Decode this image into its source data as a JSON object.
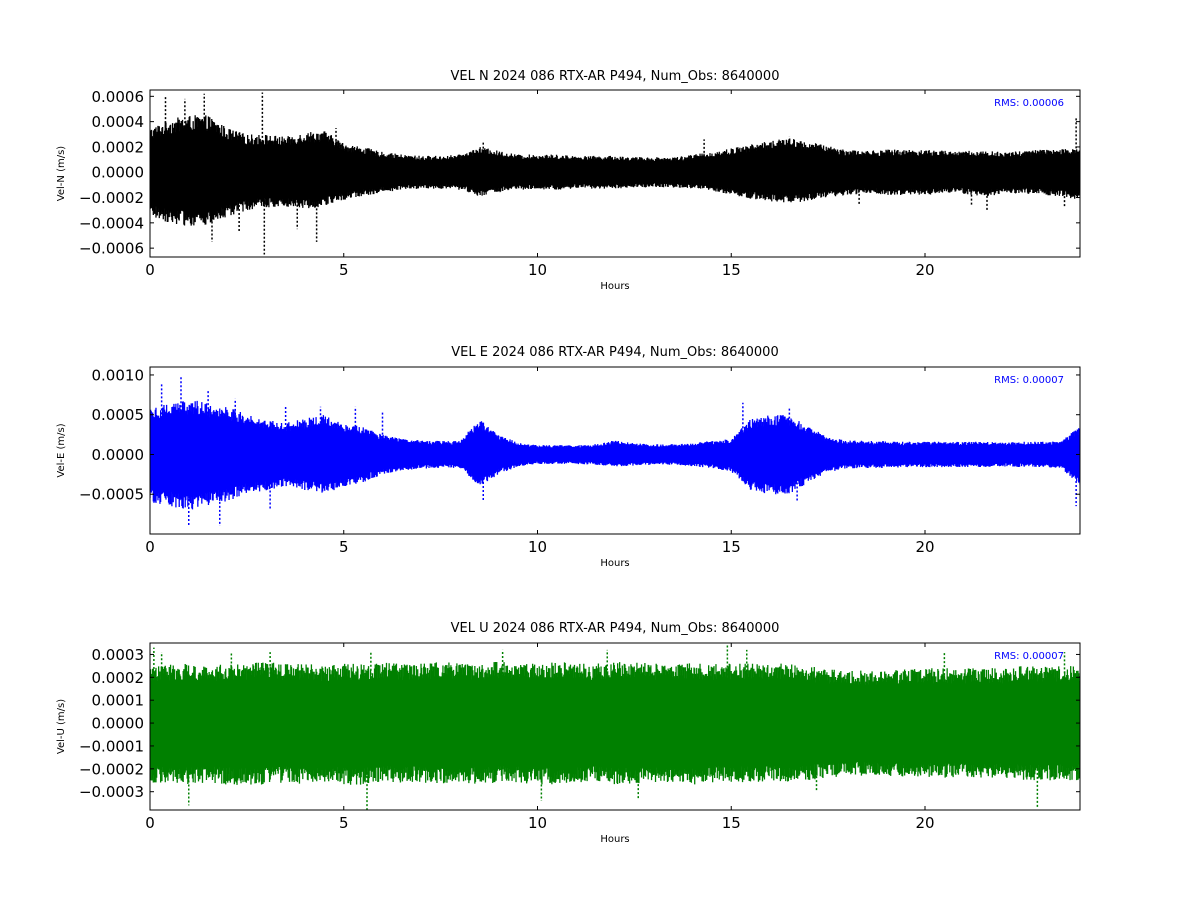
{
  "chart_data": [
    {
      "type": "scatter",
      "title": "VEL N 2024 086 RTX-AR  P494, Num_Obs: 8640000",
      "xlabel": "Hours",
      "ylabel": "Vel-N (m/s)",
      "xlim": [
        0,
        24
      ],
      "ylim": [
        -0.00067,
        0.00065
      ],
      "xticks": [
        0,
        5,
        10,
        15,
        20
      ],
      "xtick_labels": [
        "0",
        "5",
        "10",
        "15",
        "20"
      ],
      "yticks": [
        -0.0006,
        -0.0004,
        -0.0002,
        0.0,
        0.0002,
        0.0004,
        0.0006
      ],
      "ytick_labels": [
        "−0.0006",
        "−0.0004",
        "−0.0002",
        "0.0000",
        "0.0002",
        "0.0004",
        "0.0006"
      ],
      "annotation": "RMS:  0.00006",
      "annotation_color": "#0000ff",
      "color": "#000000",
      "num_obs": 8640000,
      "rms": 6e-05,
      "envelope": {
        "x": [
          0,
          0.5,
          1,
          1.5,
          2,
          2.5,
          3,
          3.5,
          4,
          4.5,
          5,
          5.5,
          6,
          6.5,
          7,
          7.5,
          8,
          8.5,
          9,
          9.5,
          10,
          10.5,
          11,
          11.5,
          12,
          12.5,
          13,
          13.5,
          14,
          14.5,
          15,
          15.5,
          16,
          16.5,
          17,
          17.5,
          18,
          18.5,
          19,
          19.5,
          20,
          20.5,
          21,
          21.5,
          22,
          22.5,
          23,
          23.5,
          24
        ],
        "y_upper": [
          0.00035,
          0.00042,
          0.00045,
          0.00045,
          0.00035,
          0.0003,
          0.0003,
          0.00028,
          0.00032,
          0.00033,
          0.00023,
          0.0002,
          0.00016,
          0.00014,
          0.00013,
          0.00013,
          0.00014,
          0.0002,
          0.00017,
          0.00014,
          0.00014,
          0.00014,
          0.00013,
          0.00013,
          0.00013,
          0.00012,
          0.00012,
          0.00012,
          0.00014,
          0.00016,
          0.00019,
          0.00022,
          0.00025,
          0.00027,
          0.00024,
          0.00021,
          0.00018,
          0.00017,
          0.00018,
          0.00018,
          0.00018,
          0.00017,
          0.00017,
          0.00017,
          0.00016,
          0.00017,
          0.00018,
          0.00018,
          0.0002
        ],
        "y_lower": [
          -0.00035,
          -0.0004,
          -0.00043,
          -0.00042,
          -0.00036,
          -0.0003,
          -0.00028,
          -0.00027,
          -0.00029,
          -0.00027,
          -0.00022,
          -0.00019,
          -0.00016,
          -0.00014,
          -0.00013,
          -0.00013,
          -0.00014,
          -0.00019,
          -0.00016,
          -0.00014,
          -0.00014,
          -0.00014,
          -0.00013,
          -0.00013,
          -0.00013,
          -0.00012,
          -0.00012,
          -0.00012,
          -0.00013,
          -0.00015,
          -0.00018,
          -0.00021,
          -0.00023,
          -0.00025,
          -0.00023,
          -0.0002,
          -0.00018,
          -0.00017,
          -0.00018,
          -0.00018,
          -0.00018,
          -0.00017,
          -0.00017,
          -0.0002,
          -0.00017,
          -0.00017,
          -0.00018,
          -0.00019,
          -0.00022
        ]
      },
      "spikes": {
        "x": [
          0.4,
          0.9,
          1.4,
          1.6,
          2.3,
          2.9,
          2.95,
          3.8,
          4.3,
          4.8,
          8.6,
          14.3,
          16.5,
          18.3,
          21.2,
          21.6,
          23.6,
          23.9
        ],
        "y": [
          0.0006,
          0.00058,
          0.00062,
          -0.00055,
          -0.00048,
          0.00063,
          -0.00065,
          -0.00045,
          -0.00055,
          0.00035,
          0.00024,
          0.00026,
          0.00028,
          -0.00025,
          -0.00026,
          -0.00031,
          -0.00027,
          0.00043
        ]
      }
    },
    {
      "type": "scatter",
      "title": "VEL E 2024 086 RTX-AR  P494, Num_Obs: 8640000",
      "xlabel": "Hours",
      "ylabel": "Vel-E (m/s)",
      "xlim": [
        0,
        24
      ],
      "ylim": [
        -0.001,
        0.0011
      ],
      "xticks": [
        0,
        5,
        10,
        15,
        20
      ],
      "xtick_labels": [
        "0",
        "5",
        "10",
        "15",
        "20"
      ],
      "yticks": [
        -0.0005,
        0.0,
        0.0005,
        0.001
      ],
      "ytick_labels": [
        "−0.0005",
        "0.0000",
        "0.0005",
        "0.0010"
      ],
      "annotation": "RMS:  0.00007",
      "annotation_color": "#0000ff",
      "color": "#0000ff",
      "num_obs": 8640000,
      "rms": 7e-05,
      "envelope": {
        "x": [
          0,
          0.5,
          1,
          1.5,
          2,
          2.5,
          3,
          3.5,
          4,
          4.5,
          5,
          5.5,
          6,
          6.5,
          7,
          7.5,
          8,
          8.5,
          9,
          9.5,
          10,
          10.5,
          11,
          11.5,
          12,
          12.5,
          13,
          13.5,
          14,
          14.5,
          15,
          15.5,
          16,
          16.5,
          17,
          17.5,
          18,
          18.5,
          19,
          19.5,
          20,
          20.5,
          21,
          21.5,
          22,
          22.5,
          23,
          23.5,
          24
        ],
        "y_upper": [
          0.0006,
          0.00065,
          0.0007,
          0.00065,
          0.0006,
          0.0005,
          0.00045,
          0.0004,
          0.00045,
          0.0005,
          0.0004,
          0.00035,
          0.00025,
          0.0002,
          0.00018,
          0.00017,
          0.00017,
          0.00045,
          0.00025,
          0.00015,
          0.00012,
          0.00012,
          0.00012,
          0.00013,
          0.00018,
          0.00014,
          0.00013,
          0.00013,
          0.00015,
          0.00017,
          0.0002,
          0.00045,
          0.0005,
          0.0005,
          0.00035,
          0.00022,
          0.00018,
          0.00017,
          0.00017,
          0.00016,
          0.00016,
          0.00016,
          0.00016,
          0.00016,
          0.00015,
          0.00016,
          0.00016,
          0.00017,
          0.00035
        ],
        "y_lower": [
          -0.0006,
          -0.00065,
          -0.0007,
          -0.00065,
          -0.0006,
          -0.0005,
          -0.00045,
          -0.0004,
          -0.00045,
          -0.0005,
          -0.0004,
          -0.00035,
          -0.00025,
          -0.0002,
          -0.00018,
          -0.00017,
          -0.00017,
          -0.0004,
          -0.00025,
          -0.00015,
          -0.00012,
          -0.00012,
          -0.00012,
          -0.00013,
          -0.00015,
          -0.00014,
          -0.00013,
          -0.00013,
          -0.00015,
          -0.00017,
          -0.00022,
          -0.00045,
          -0.0005,
          -0.0005,
          -0.00035,
          -0.00022,
          -0.00018,
          -0.00017,
          -0.00017,
          -0.00016,
          -0.00016,
          -0.00016,
          -0.00016,
          -0.00016,
          -0.00015,
          -0.00016,
          -0.00016,
          -0.00017,
          -0.0004
        ]
      },
      "spikes": {
        "x": [
          0.3,
          0.8,
          1.0,
          1.5,
          1.8,
          2.2,
          3.1,
          3.5,
          4.4,
          5.3,
          6.0,
          8.6,
          15.3,
          16.5,
          16.7,
          23.9
        ],
        "y": [
          0.0009,
          0.00098,
          -0.0009,
          0.0008,
          -0.0009,
          0.0007,
          -0.0007,
          0.0006,
          0.0006,
          0.0006,
          0.00055,
          -0.00058,
          0.00065,
          0.0006,
          -0.0006,
          -0.00065
        ]
      }
    },
    {
      "type": "scatter",
      "title": "VEL U 2024 086 RTX-AR  P494, Num_Obs: 8640000",
      "xlabel": "Hours",
      "ylabel": "Vel-U (m/s)",
      "xlim": [
        0,
        24
      ],
      "ylim": [
        -0.00038,
        0.00035
      ],
      "xticks": [
        0,
        5,
        10,
        15,
        20
      ],
      "xtick_labels": [
        "0",
        "5",
        "10",
        "15",
        "20"
      ],
      "yticks": [
        -0.0003,
        -0.0002,
        -0.0001,
        0.0,
        0.0001,
        0.0002,
        0.0003
      ],
      "ytick_labels": [
        "−0.0003",
        "−0.0002",
        "−0.0001",
        "0.0000",
        "0.0001",
        "0.0002",
        "0.0003"
      ],
      "annotation": "RMS:  0.00007",
      "annotation_color": "#0000ff",
      "color": "#008000",
      "num_obs": 8640000,
      "rms": 7e-05,
      "envelope": {
        "x": [
          0,
          0.5,
          1,
          1.5,
          2,
          2.5,
          3,
          3.5,
          4,
          4.5,
          5,
          5.5,
          6,
          6.5,
          7,
          7.5,
          8,
          8.5,
          9,
          9.5,
          10,
          10.5,
          11,
          11.5,
          12,
          12.5,
          13,
          13.5,
          14,
          14.5,
          15,
          15.5,
          16,
          16.5,
          17,
          17.5,
          18,
          18.5,
          19,
          19.5,
          20,
          20.5,
          21,
          21.5,
          22,
          22.5,
          23,
          23.5,
          24
        ],
        "y_upper": [
          0.00025,
          0.00026,
          0.00026,
          0.00025,
          0.00026,
          0.00026,
          0.00027,
          0.00026,
          0.00026,
          0.00025,
          0.00026,
          0.00026,
          0.00027,
          0.00026,
          0.00026,
          0.00027,
          0.00026,
          0.00026,
          0.00027,
          0.00026,
          0.00026,
          0.00027,
          0.00026,
          0.00026,
          0.00027,
          0.00027,
          0.00026,
          0.00026,
          0.00027,
          0.00026,
          0.00026,
          0.00026,
          0.00026,
          0.00026,
          0.00025,
          0.00024,
          0.00023,
          0.00023,
          0.00023,
          0.00024,
          0.00024,
          0.00024,
          0.00024,
          0.00024,
          0.00024,
          0.00025,
          0.00025,
          0.00025,
          0.00025
        ],
        "y_lower": [
          -0.00026,
          -0.00026,
          -0.00027,
          -0.00026,
          -0.00027,
          -0.00027,
          -0.00027,
          -0.00026,
          -0.00027,
          -0.00026,
          -0.00027,
          -0.00027,
          -0.00026,
          -0.00026,
          -0.00026,
          -0.00027,
          -0.00026,
          -0.00027,
          -0.00026,
          -0.00026,
          -0.00027,
          -0.00027,
          -0.00026,
          -0.00026,
          -0.00027,
          -0.00027,
          -0.00026,
          -0.00027,
          -0.00027,
          -0.00026,
          -0.00026,
          -0.00026,
          -0.00026,
          -0.00026,
          -0.00025,
          -0.00024,
          -0.00023,
          -0.00023,
          -0.00023,
          -0.00024,
          -0.00024,
          -0.00024,
          -0.00024,
          -0.00024,
          -0.00024,
          -0.00025,
          -0.00025,
          -0.00025,
          -0.00025
        ]
      },
      "spikes": {
        "x": [
          0.1,
          0.3,
          1.0,
          2.1,
          3.1,
          5.6,
          5.7,
          9.1,
          10.1,
          11.8,
          12.6,
          14.9,
          15.4,
          17.2,
          20.5,
          22.9,
          23.6
        ],
        "y": [
          0.00033,
          0.00031,
          -0.00036,
          0.00031,
          0.00031,
          -0.00038,
          0.00031,
          0.00032,
          -0.00034,
          0.00032,
          -0.00033,
          0.00034,
          0.00032,
          -0.0003,
          0.00031,
          -0.00037,
          0.00031
        ]
      }
    }
  ]
}
